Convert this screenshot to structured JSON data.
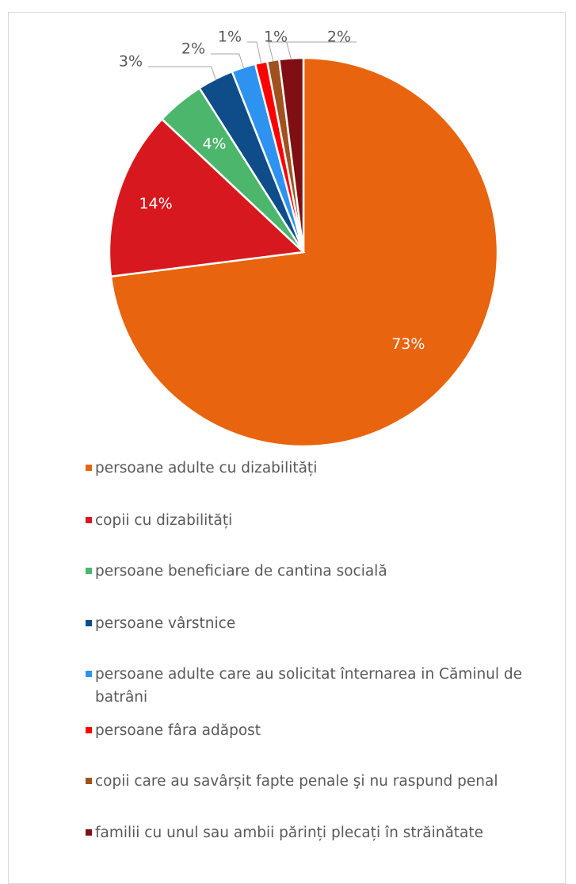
{
  "chart_data": {
    "type": "pie",
    "categories": [
      "persoane adulte cu dizabilități",
      "copii cu dizabilități",
      "persoane beneficiare de cantina socială",
      "persoane vârstnice",
      "persoane adulte care au solicitat înternarea in Căminul de batrâni",
      "persoane fâra adăpost",
      "copii care au savârșit fapte penale şi nu raspund penal",
      "familii cu unul sau ambii părinți plecați în străinătate"
    ],
    "values": [
      73,
      14,
      4,
      3,
      2,
      1,
      1,
      2
    ],
    "value_labels": [
      "73%",
      "14%",
      "4%",
      "3%",
      "2%",
      "1%",
      "1%",
      "2%"
    ],
    "colors": [
      "#e8640f",
      "#d7191f",
      "#4cb76c",
      "#0e4c8a",
      "#2e92f0",
      "#ff0000",
      "#a0521e",
      "#7f0f13"
    ],
    "legend": "bottom"
  }
}
